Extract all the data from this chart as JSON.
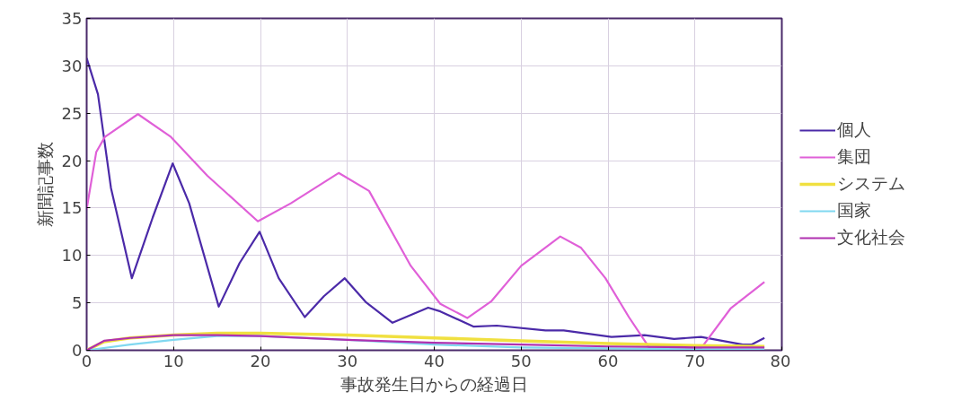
{
  "chart_data": {
    "type": "line",
    "xlabel": "事故発生日からの経過日",
    "ylabel": "新聞記事数",
    "xlim": [
      0,
      80
    ],
    "ylim": [
      0,
      35
    ],
    "xticks": [
      0,
      10,
      20,
      30,
      40,
      50,
      60,
      70,
      80
    ],
    "yticks": [
      0,
      5,
      10,
      15,
      20,
      25,
      30,
      35
    ],
    "grid": true,
    "legend": "right",
    "marker": "none",
    "line_style": "solid",
    "series": [
      {
        "name": "個人",
        "color": "#4b2aa8",
        "x": [
          0,
          1.3,
          2.8,
          5.2,
          7.6,
          9.9,
          11.8,
          15.2,
          17.6,
          19.9,
          22.1,
          25.1,
          27.3,
          29.7,
          32.1,
          35.2,
          39.3,
          40.7,
          44.5,
          47.2,
          52.8,
          54.9,
          60.4,
          64.2,
          67.6,
          70.7,
          75.5,
          76.5,
          78
        ],
        "values": [
          30.8,
          27.0,
          17.1,
          7.6,
          14.0,
          19.7,
          15.5,
          4.6,
          9.2,
          12.5,
          7.6,
          3.5,
          5.7,
          7.6,
          5.1,
          2.9,
          4.5,
          4.1,
          2.5,
          2.6,
          2.1,
          2.1,
          1.4,
          1.6,
          1.2,
          1.4,
          0.6,
          0.6,
          1.3
        ]
      },
      {
        "name": "集団",
        "color": "#e060d8",
        "x": [
          0,
          1.1,
          2.1,
          5.9,
          9.7,
          13.9,
          19.7,
          23.5,
          29.0,
          32.5,
          37.3,
          40.7,
          43.8,
          46.6,
          50.0,
          54.5,
          56.9,
          59.7,
          62.4,
          64.8,
          70.7,
          74.1,
          78
        ],
        "values": [
          14.9,
          20.9,
          22.5,
          24.9,
          22.5,
          18.4,
          13.6,
          15.5,
          18.7,
          16.8,
          8.9,
          4.9,
          3.4,
          5.2,
          8.9,
          12.0,
          10.8,
          7.6,
          3.5,
          0.2,
          0.2,
          4.4,
          7.2
        ]
      },
      {
        "name": "システム",
        "color": "#f0e040",
        "x": [
          0,
          2,
          5,
          10,
          15,
          20,
          30,
          40,
          50,
          60,
          70,
          78
        ],
        "values": [
          0,
          0.9,
          1.3,
          1.6,
          1.8,
          1.8,
          1.6,
          1.3,
          1.0,
          0.7,
          0.5,
          0.4
        ]
      },
      {
        "name": "国家",
        "color": "#80d8f0",
        "x": [
          0,
          5,
          10,
          15,
          20,
          30,
          40,
          50,
          60,
          70,
          78
        ],
        "values": [
          0,
          0.6,
          1.1,
          1.5,
          1.5,
          1.1,
          0.6,
          0.3,
          0.2,
          0.1,
          0.1
        ]
      },
      {
        "name": "文化社会",
        "color": "#b030b0",
        "x": [
          0,
          2,
          5,
          10,
          15,
          20,
          30,
          40,
          50,
          60,
          70,
          78
        ],
        "values": [
          0,
          1.0,
          1.3,
          1.6,
          1.6,
          1.5,
          1.1,
          0.8,
          0.6,
          0.4,
          0.3,
          0.3
        ]
      }
    ]
  }
}
